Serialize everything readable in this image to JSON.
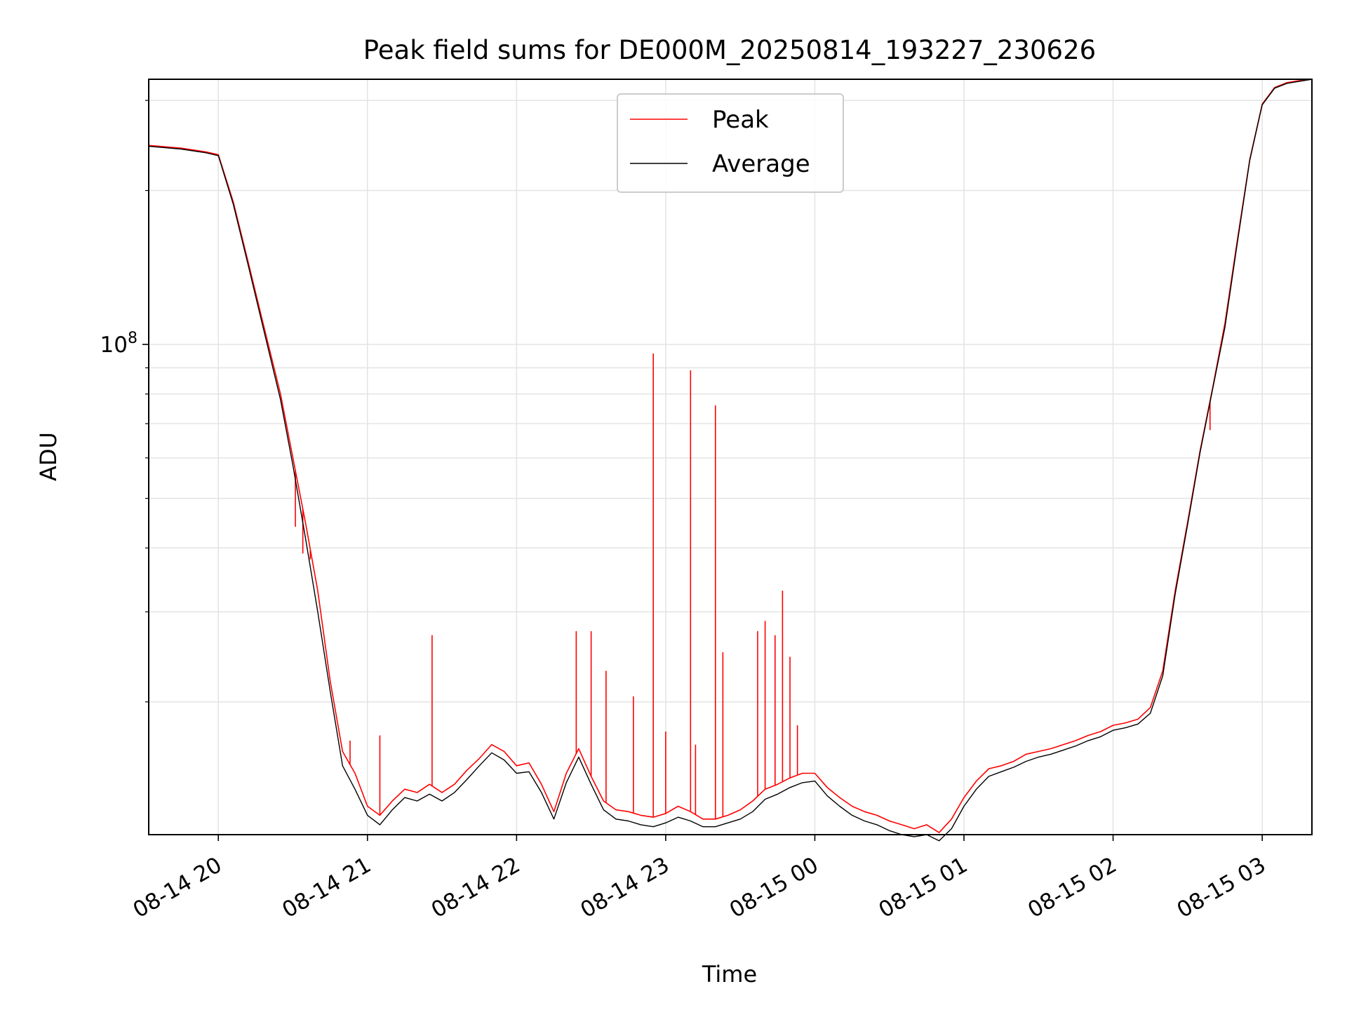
{
  "chart_data": {
    "type": "line",
    "title": "Peak field sums for DE000M_20250814_193227_230626",
    "xlabel": "Time",
    "ylabel": "ADU",
    "y_scale": "log",
    "xlim": [
      "2025-08-14 19:32",
      "2025-08-15 03:20"
    ],
    "ylim": [
      11000000,
      330000000
    ],
    "x_ticks": [
      "08-14 20",
      "08-14 21",
      "08-14 22",
      "08-14 23",
      "08-15 00",
      "08-15 01",
      "08-15 02",
      "08-15 03"
    ],
    "x_tick_values": [
      "2025-08-14 20:00",
      "2025-08-14 21:00",
      "2025-08-14 22:00",
      "2025-08-14 23:00",
      "2025-08-15 00:00",
      "2025-08-15 01:00",
      "2025-08-15 02:00",
      "2025-08-15 03:00"
    ],
    "y_major_ticks": [
      {
        "value": 100000000,
        "base": "10",
        "exp": "8"
      }
    ],
    "y_minor_ticks": [
      20000000,
      30000000,
      40000000,
      50000000,
      60000000,
      70000000,
      80000000,
      90000000,
      200000000,
      300000000
    ],
    "grid": true,
    "legend_position": "upper center",
    "series": [
      {
        "name": "Peak",
        "color": "#ff0000",
        "x": [
          "2025-08-14 19:32",
          "2025-08-14 19:45",
          "2025-08-14 19:55",
          "2025-08-14 20:00",
          "2025-08-14 20:06",
          "2025-08-14 20:12",
          "2025-08-14 20:18",
          "2025-08-14 20:25",
          "2025-08-14 20:30",
          "2025-08-14 20:35",
          "2025-08-14 20:40",
          "2025-08-14 20:45",
          "2025-08-14 20:50",
          "2025-08-14 20:55",
          "2025-08-14 21:00",
          "2025-08-14 21:05",
          "2025-08-14 21:10",
          "2025-08-14 21:15",
          "2025-08-14 21:20",
          "2025-08-14 21:25",
          "2025-08-14 21:30",
          "2025-08-14 21:35",
          "2025-08-14 21:40",
          "2025-08-14 21:45",
          "2025-08-14 21:50",
          "2025-08-14 21:55",
          "2025-08-14 22:00",
          "2025-08-14 22:05",
          "2025-08-14 22:10",
          "2025-08-14 22:15",
          "2025-08-14 22:20",
          "2025-08-14 22:25",
          "2025-08-14 22:30",
          "2025-08-14 22:35",
          "2025-08-14 22:40",
          "2025-08-14 22:45",
          "2025-08-14 22:50",
          "2025-08-14 22:55",
          "2025-08-14 23:00",
          "2025-08-14 23:05",
          "2025-08-14 23:10",
          "2025-08-14 23:15",
          "2025-08-14 23:20",
          "2025-08-14 23:25",
          "2025-08-14 23:30",
          "2025-08-14 23:35",
          "2025-08-14 23:40",
          "2025-08-14 23:45",
          "2025-08-14 23:50",
          "2025-08-14 23:55",
          "2025-08-15 00:00",
          "2025-08-15 00:05",
          "2025-08-15 00:10",
          "2025-08-15 00:15",
          "2025-08-15 00:20",
          "2025-08-15 00:25",
          "2025-08-15 00:30",
          "2025-08-15 00:35",
          "2025-08-15 00:40",
          "2025-08-15 00:45",
          "2025-08-15 00:50",
          "2025-08-15 00:55",
          "2025-08-15 01:00",
          "2025-08-15 01:05",
          "2025-08-15 01:10",
          "2025-08-15 01:15",
          "2025-08-15 01:20",
          "2025-08-15 01:25",
          "2025-08-15 01:30",
          "2025-08-15 01:35",
          "2025-08-15 01:40",
          "2025-08-15 01:45",
          "2025-08-15 01:50",
          "2025-08-15 01:55",
          "2025-08-15 02:00",
          "2025-08-15 02:05",
          "2025-08-15 02:10",
          "2025-08-15 02:15",
          "2025-08-15 02:20",
          "2025-08-15 02:25",
          "2025-08-15 02:30",
          "2025-08-15 02:35",
          "2025-08-15 02:40",
          "2025-08-15 02:45",
          "2025-08-15 02:50",
          "2025-08-15 02:55",
          "2025-08-15 03:00",
          "2025-08-15 03:05",
          "2025-08-15 03:10",
          "2025-08-15 03:15",
          "2025-08-15 03:20"
        ],
        "y": [
          245000000,
          242000000,
          238000000,
          235000000,
          190000000,
          145000000,
          110000000,
          80000000,
          60000000,
          45000000,
          33000000,
          22000000,
          16000000,
          14500000,
          12500000,
          12000000,
          12800000,
          13500000,
          13300000,
          13800000,
          13300000,
          13800000,
          14700000,
          15500000,
          16500000,
          16000000,
          15000000,
          15200000,
          13800000,
          12200000,
          14500000,
          16200000,
          14300000,
          12800000,
          12300000,
          12200000,
          12000000,
          11900000,
          12100000,
          12500000,
          12200000,
          11800000,
          11800000,
          12000000,
          12300000,
          12800000,
          13500000,
          13800000,
          14200000,
          14500000,
          14500000,
          13600000,
          13000000,
          12500000,
          12200000,
          12000000,
          11700000,
          11500000,
          11300000,
          11500000,
          11100000,
          11800000,
          13000000,
          14000000,
          14800000,
          15000000,
          15300000,
          15800000,
          16000000,
          16200000,
          16500000,
          16800000,
          17200000,
          17500000,
          18000000,
          18200000,
          18500000,
          19500000,
          23000000,
          33000000,
          45000000,
          62000000,
          82000000,
          110000000,
          160000000,
          230000000,
          295000000,
          318000000,
          325000000,
          328000000,
          330000000
        ],
        "spikes": [
          {
            "x": "2025-08-14 20:31",
            "y": 44000000
          },
          {
            "x": "2025-08-14 20:34",
            "y": 39000000
          },
          {
            "x": "2025-08-14 20:37",
            "y": 38000000
          },
          {
            "x": "2025-08-14 20:53",
            "y": 16800000
          },
          {
            "x": "2025-08-14 21:05",
            "y": 17200000
          },
          {
            "x": "2025-08-14 21:26",
            "y": 27000000
          },
          {
            "x": "2025-08-14 22:24",
            "y": 27500000
          },
          {
            "x": "2025-08-14 22:30",
            "y": 27500000
          },
          {
            "x": "2025-08-14 22:36",
            "y": 23000000
          },
          {
            "x": "2025-08-14 22:47",
            "y": 20500000
          },
          {
            "x": "2025-08-14 22:55",
            "y": 96000000
          },
          {
            "x": "2025-08-14 23:00",
            "y": 17500000
          },
          {
            "x": "2025-08-14 23:10",
            "y": 89000000
          },
          {
            "x": "2025-08-14 23:12",
            "y": 16500000
          },
          {
            "x": "2025-08-14 23:20",
            "y": 76000000
          },
          {
            "x": "2025-08-14 23:23",
            "y": 25000000
          },
          {
            "x": "2025-08-14 23:37",
            "y": 27500000
          },
          {
            "x": "2025-08-14 23:40",
            "y": 28800000
          },
          {
            "x": "2025-08-14 23:44",
            "y": 27000000
          },
          {
            "x": "2025-08-14 23:47",
            "y": 33000000
          },
          {
            "x": "2025-08-14 23:50",
            "y": 24500000
          },
          {
            "x": "2025-08-14 23:53",
            "y": 18000000
          },
          {
            "x": "2025-08-15 02:39",
            "y": 68000000
          }
        ]
      },
      {
        "name": "Average",
        "color": "#000000",
        "x": [
          "2025-08-14 19:32",
          "2025-08-14 19:45",
          "2025-08-14 19:55",
          "2025-08-14 20:00",
          "2025-08-14 20:06",
          "2025-08-14 20:12",
          "2025-08-14 20:18",
          "2025-08-14 20:25",
          "2025-08-14 20:30",
          "2025-08-14 20:35",
          "2025-08-14 20:40",
          "2025-08-14 20:45",
          "2025-08-14 20:50",
          "2025-08-14 20:55",
          "2025-08-14 21:00",
          "2025-08-14 21:05",
          "2025-08-14 21:10",
          "2025-08-14 21:15",
          "2025-08-14 21:20",
          "2025-08-14 21:25",
          "2025-08-14 21:30",
          "2025-08-14 21:35",
          "2025-08-14 21:40",
          "2025-08-14 21:45",
          "2025-08-14 21:50",
          "2025-08-14 21:55",
          "2025-08-14 22:00",
          "2025-08-14 22:05",
          "2025-08-14 22:10",
          "2025-08-14 22:15",
          "2025-08-14 22:20",
          "2025-08-14 22:25",
          "2025-08-14 22:30",
          "2025-08-14 22:35",
          "2025-08-14 22:40",
          "2025-08-14 22:45",
          "2025-08-14 22:50",
          "2025-08-14 22:55",
          "2025-08-14 23:00",
          "2025-08-14 23:05",
          "2025-08-14 23:10",
          "2025-08-14 23:15",
          "2025-08-14 23:20",
          "2025-08-14 23:25",
          "2025-08-14 23:30",
          "2025-08-14 23:35",
          "2025-08-14 23:40",
          "2025-08-14 23:45",
          "2025-08-14 23:50",
          "2025-08-14 23:55",
          "2025-08-15 00:00",
          "2025-08-15 00:05",
          "2025-08-15 00:10",
          "2025-08-15 00:15",
          "2025-08-15 00:20",
          "2025-08-15 00:25",
          "2025-08-15 00:30",
          "2025-08-15 00:35",
          "2025-08-15 00:40",
          "2025-08-15 00:45",
          "2025-08-15 00:50",
          "2025-08-15 00:55",
          "2025-08-15 01:00",
          "2025-08-15 01:05",
          "2025-08-15 01:10",
          "2025-08-15 01:15",
          "2025-08-15 01:20",
          "2025-08-15 01:25",
          "2025-08-15 01:30",
          "2025-08-15 01:35",
          "2025-08-15 01:40",
          "2025-08-15 01:45",
          "2025-08-15 01:50",
          "2025-08-15 01:55",
          "2025-08-15 02:00",
          "2025-08-15 02:05",
          "2025-08-15 02:10",
          "2025-08-15 02:15",
          "2025-08-15 02:20",
          "2025-08-15 02:25",
          "2025-08-15 02:30",
          "2025-08-15 02:35",
          "2025-08-15 02:40",
          "2025-08-15 02:45",
          "2025-08-15 02:50",
          "2025-08-15 02:55",
          "2025-08-15 03:00",
          "2025-08-15 03:05",
          "2025-08-15 03:10",
          "2025-08-15 03:15",
          "2025-08-15 03:20"
        ],
        "y": [
          244000000,
          241000000,
          237000000,
          234000000,
          188000000,
          143000000,
          108000000,
          78000000,
          58000000,
          42000000,
          30000000,
          21000000,
          15000000,
          13500000,
          12000000,
          11500000,
          12300000,
          13000000,
          12800000,
          13200000,
          12800000,
          13300000,
          14100000,
          15000000,
          15900000,
          15400000,
          14500000,
          14600000,
          13300000,
          11800000,
          13900000,
          15600000,
          13800000,
          12300000,
          11800000,
          11700000,
          11500000,
          11400000,
          11600000,
          11900000,
          11700000,
          11400000,
          11400000,
          11600000,
          11800000,
          12200000,
          12900000,
          13200000,
          13600000,
          13900000,
          14000000,
          13100000,
          12500000,
          12000000,
          11700000,
          11500000,
          11200000,
          11000000,
          10900000,
          11000000,
          10700000,
          11300000,
          12500000,
          13500000,
          14300000,
          14600000,
          14900000,
          15300000,
          15600000,
          15800000,
          16100000,
          16400000,
          16800000,
          17100000,
          17600000,
          17800000,
          18100000,
          19000000,
          22500000,
          32500000,
          44500000,
          61500000,
          81500000,
          108000000,
          158000000,
          229000000,
          294000000,
          317000000,
          324000000,
          327000000,
          330000000
        ]
      }
    ]
  }
}
